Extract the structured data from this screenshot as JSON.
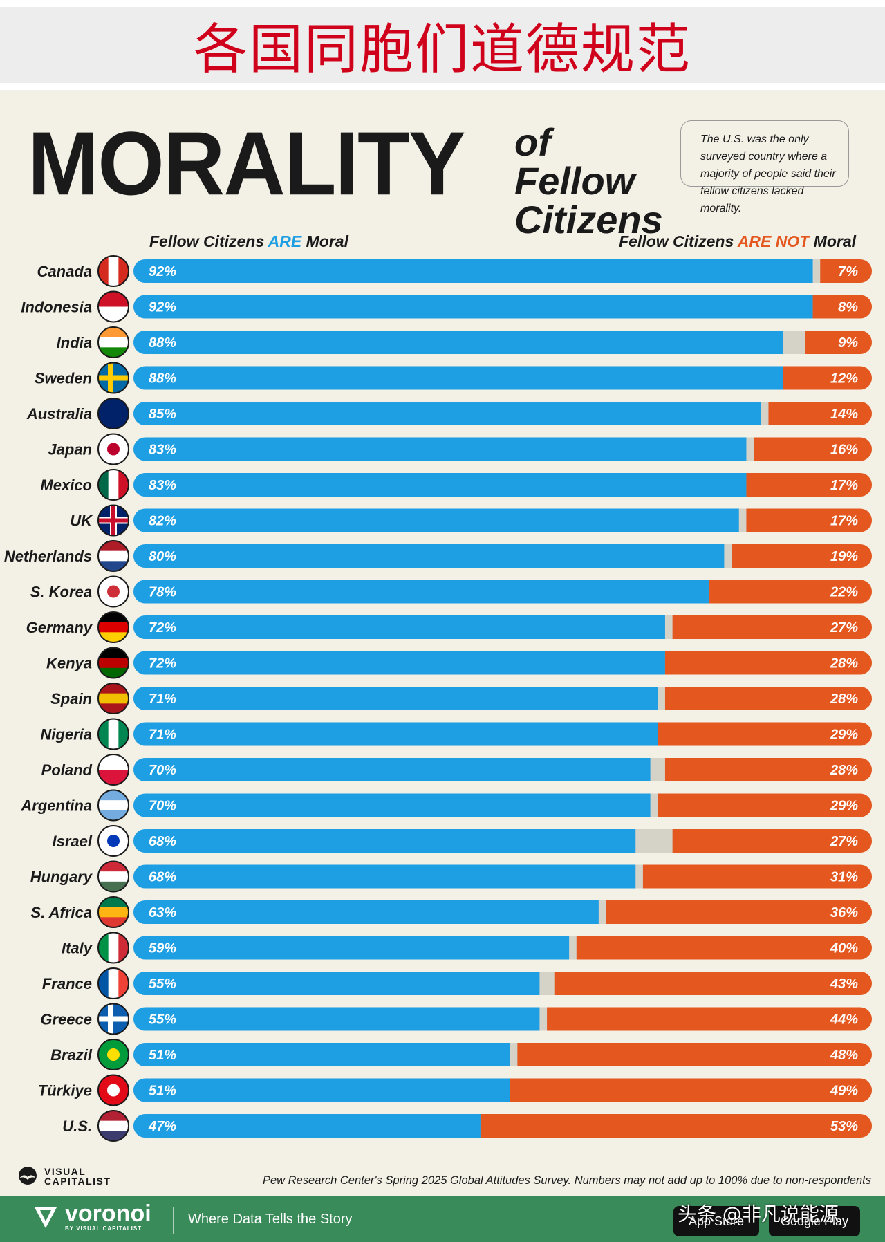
{
  "banner_title": "各国同胞们道德规范",
  "title_main": "MORALITY",
  "title_sub": "of Fellow Citizens",
  "note": "The U.S. was the only surveyed country where a majority of people said their fellow citizens lacked morality.",
  "header_left": {
    "pre": "Fellow Citizens ",
    "accent": "ARE",
    "post": " Moral"
  },
  "header_right": {
    "pre": "Fellow Citizens ",
    "accent": "ARE NOT",
    "post": " Moral"
  },
  "colors": {
    "moral": "#1e9ee3",
    "not_moral": "#e4571e",
    "no_answer": "#d5d2c8",
    "background": "#f3f0e6"
  },
  "chart_data": {
    "type": "bar",
    "orientation": "horizontal-stacked",
    "title": "MORALITY of Fellow Citizens",
    "unit": "%",
    "xlim": [
      0,
      100
    ],
    "categories": [
      "Canada",
      "Indonesia",
      "India",
      "Sweden",
      "Australia",
      "Japan",
      "Mexico",
      "UK",
      "Netherlands",
      "S. Korea",
      "Germany",
      "Kenya",
      "Spain",
      "Nigeria",
      "Poland",
      "Argentina",
      "Israel",
      "Hungary",
      "S. Africa",
      "Italy",
      "France",
      "Greece",
      "Brazil",
      "Türkiye",
      "U.S."
    ],
    "series": [
      {
        "name": "Fellow Citizens ARE Moral",
        "values": [
          92,
          92,
          88,
          88,
          85,
          83,
          83,
          82,
          80,
          78,
          72,
          72,
          71,
          71,
          70,
          70,
          68,
          68,
          63,
          59,
          55,
          55,
          51,
          51,
          47
        ]
      },
      {
        "name": "Fellow Citizens ARE NOT Moral",
        "values": [
          7,
          8,
          9,
          12,
          14,
          16,
          17,
          17,
          19,
          22,
          27,
          28,
          28,
          29,
          28,
          29,
          27,
          31,
          36,
          40,
          43,
          44,
          48,
          49,
          53
        ]
      }
    ]
  },
  "source": "Pew Research Center's Spring 2025 Global Attitudes Survey. Numbers may not add up to 100% due to non-respondents",
  "brand": {
    "vc_line1": "VISUAL",
    "vc_line2": "CAPITALIST",
    "voronoi": "voronoi",
    "voronoi_sub": "BY VISUAL CAPITALIST",
    "tagline": "Where Data Tells the Story"
  },
  "stores": {
    "app_store": "App Store",
    "google_play": "Google Play"
  },
  "watermark": "头条 @非凡说能源"
}
